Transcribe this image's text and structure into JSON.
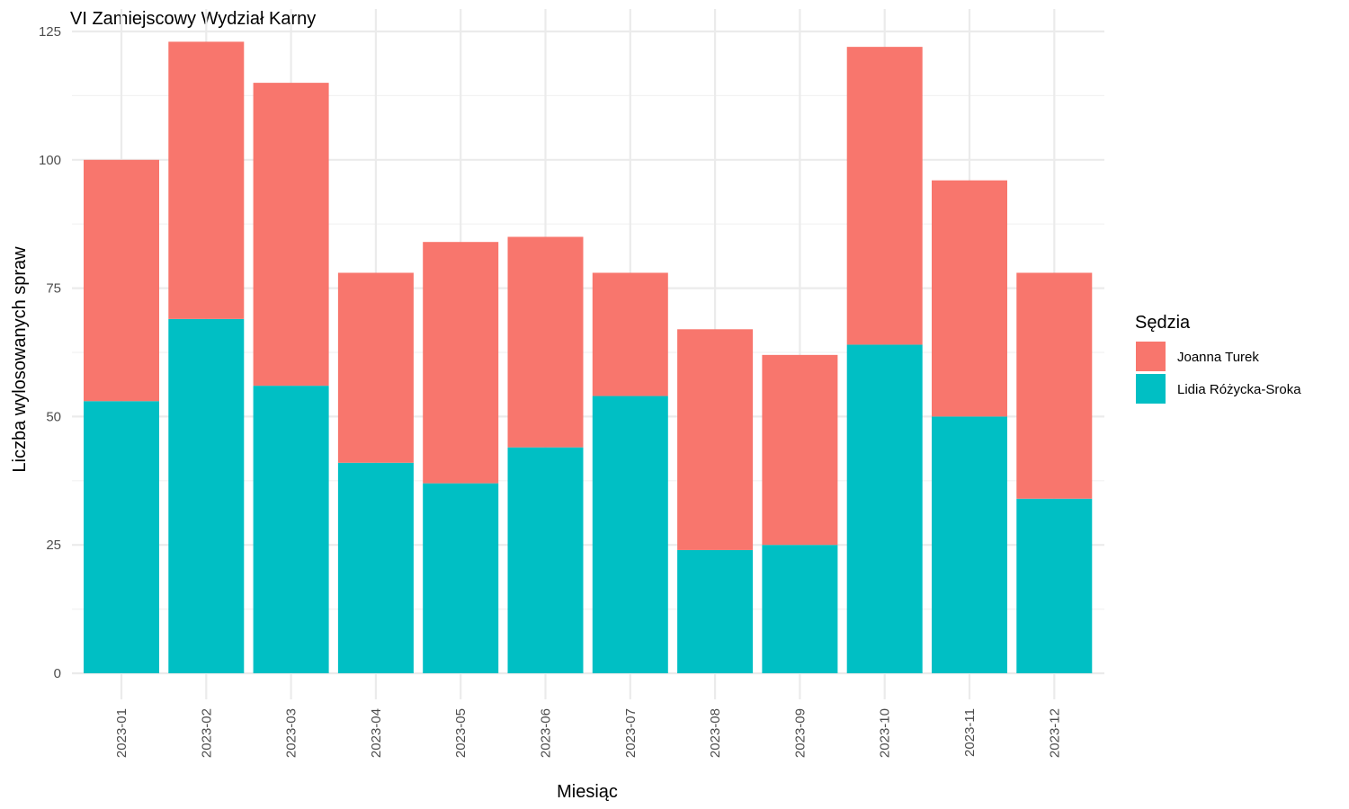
{
  "chart_data": {
    "type": "bar",
    "stacked": true,
    "title": "VI Zamiejscowy Wydział Karny",
    "xlabel": "Miesiąc",
    "ylabel": "Liczba wylosowanych spraw",
    "ylim": [
      0,
      125
    ],
    "yticks": [
      "0",
      "25",
      "50",
      "75",
      "100",
      "125"
    ],
    "grid": true,
    "legend_title": "Sędzia",
    "legend_position": "right",
    "categories": [
      "2023-01",
      "2023-02",
      "2023-03",
      "2023-04",
      "2023-05",
      "2023-06",
      "2023-07",
      "2023-08",
      "2023-09",
      "2023-10",
      "2023-11",
      "2023-12"
    ],
    "series": [
      {
        "name": "Lidia Różycka-Sroka",
        "color": "#00BFC4",
        "values": [
          53,
          69,
          56,
          41,
          37,
          44,
          54,
          24,
          25,
          64,
          50,
          34
        ]
      },
      {
        "name": "Joanna Turek",
        "color": "#F8766D",
        "values": [
          47,
          54,
          59,
          37,
          47,
          41,
          24,
          43,
          37,
          58,
          46,
          44
        ]
      }
    ],
    "legend_order": [
      1,
      0
    ]
  }
}
